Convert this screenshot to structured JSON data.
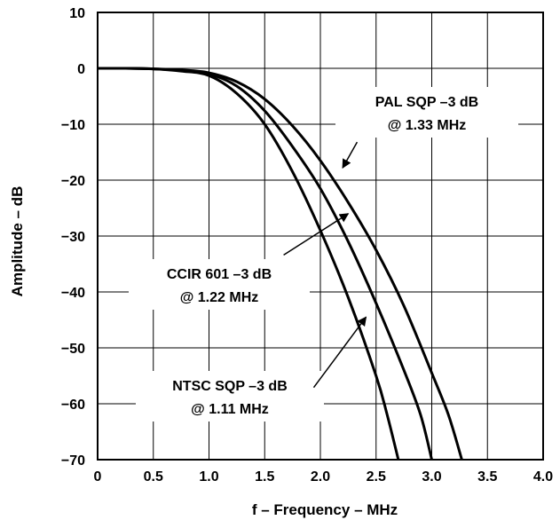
{
  "chart_data": {
    "type": "line",
    "xlabel": "f – Frequency – MHz",
    "ylabel": "Amplitude – dB",
    "xlim": [
      0,
      4.0
    ],
    "ylim": [
      -70,
      10
    ],
    "grid": true,
    "legend": "none",
    "xticks": [
      "0",
      "0.5",
      "1.0",
      "1.5",
      "2.0",
      "2.5",
      "3.0",
      "3.5",
      "4.0"
    ],
    "yticks": [
      "10",
      "0",
      "−10",
      "−20",
      "−30",
      "−40",
      "−50",
      "−60",
      "−70"
    ],
    "series": [
      {
        "x": [
          0,
          0.25,
          0.5,
          0.75,
          1.0,
          1.25,
          1.5,
          1.75,
          2.0,
          2.25,
          2.5,
          2.6,
          2.7
        ],
        "y": [
          0,
          0,
          -0.1,
          -0.5,
          -1.3,
          -4.5,
          -10,
          -18.5,
          -29,
          -41,
          -55,
          -62,
          -70
        ]
      },
      {
        "x": [
          0,
          0.25,
          0.5,
          0.75,
          1.0,
          1.25,
          1.5,
          1.75,
          2.0,
          2.25,
          2.5,
          2.75,
          2.9,
          3.0
        ],
        "y": [
          0,
          0,
          -0.1,
          -0.4,
          -1.0,
          -3.2,
          -7.6,
          -14,
          -21.5,
          -31,
          -42,
          -54,
          -62,
          -70
        ]
      },
      {
        "x": [
          0,
          0.25,
          0.5,
          0.75,
          1.0,
          1.25,
          1.5,
          1.75,
          2.0,
          2.25,
          2.5,
          2.75,
          3.0,
          3.15,
          3.27
        ],
        "y": [
          0,
          0,
          -0.1,
          -0.3,
          -0.8,
          -2.4,
          -5.5,
          -10.3,
          -16.5,
          -24,
          -32.5,
          -42.5,
          -54.5,
          -62,
          -70
        ]
      }
    ],
    "annotations": [
      {
        "line1": "PAL SQP –3 dB",
        "line2": "@ 1.33 MHz",
        "arrow_from": [
          2.33,
          -13.2
        ],
        "arrow_to": [
          2.2,
          -17.8
        ]
      },
      {
        "line1": "CCIR 601 –3 dB",
        "line2": "@ 1.22 MHz",
        "arrow_from": [
          1.67,
          -33.4
        ],
        "arrow_to": [
          2.25,
          -26
        ]
      },
      {
        "line1": "NTSC SQP –3 dB",
        "line2": "@ 1.11 MHz",
        "arrow_from": [
          1.94,
          -57.1
        ],
        "arrow_to": [
          2.41,
          -44.5
        ]
      }
    ],
    "line_color": "#000000",
    "grid_color": "#000000"
  }
}
